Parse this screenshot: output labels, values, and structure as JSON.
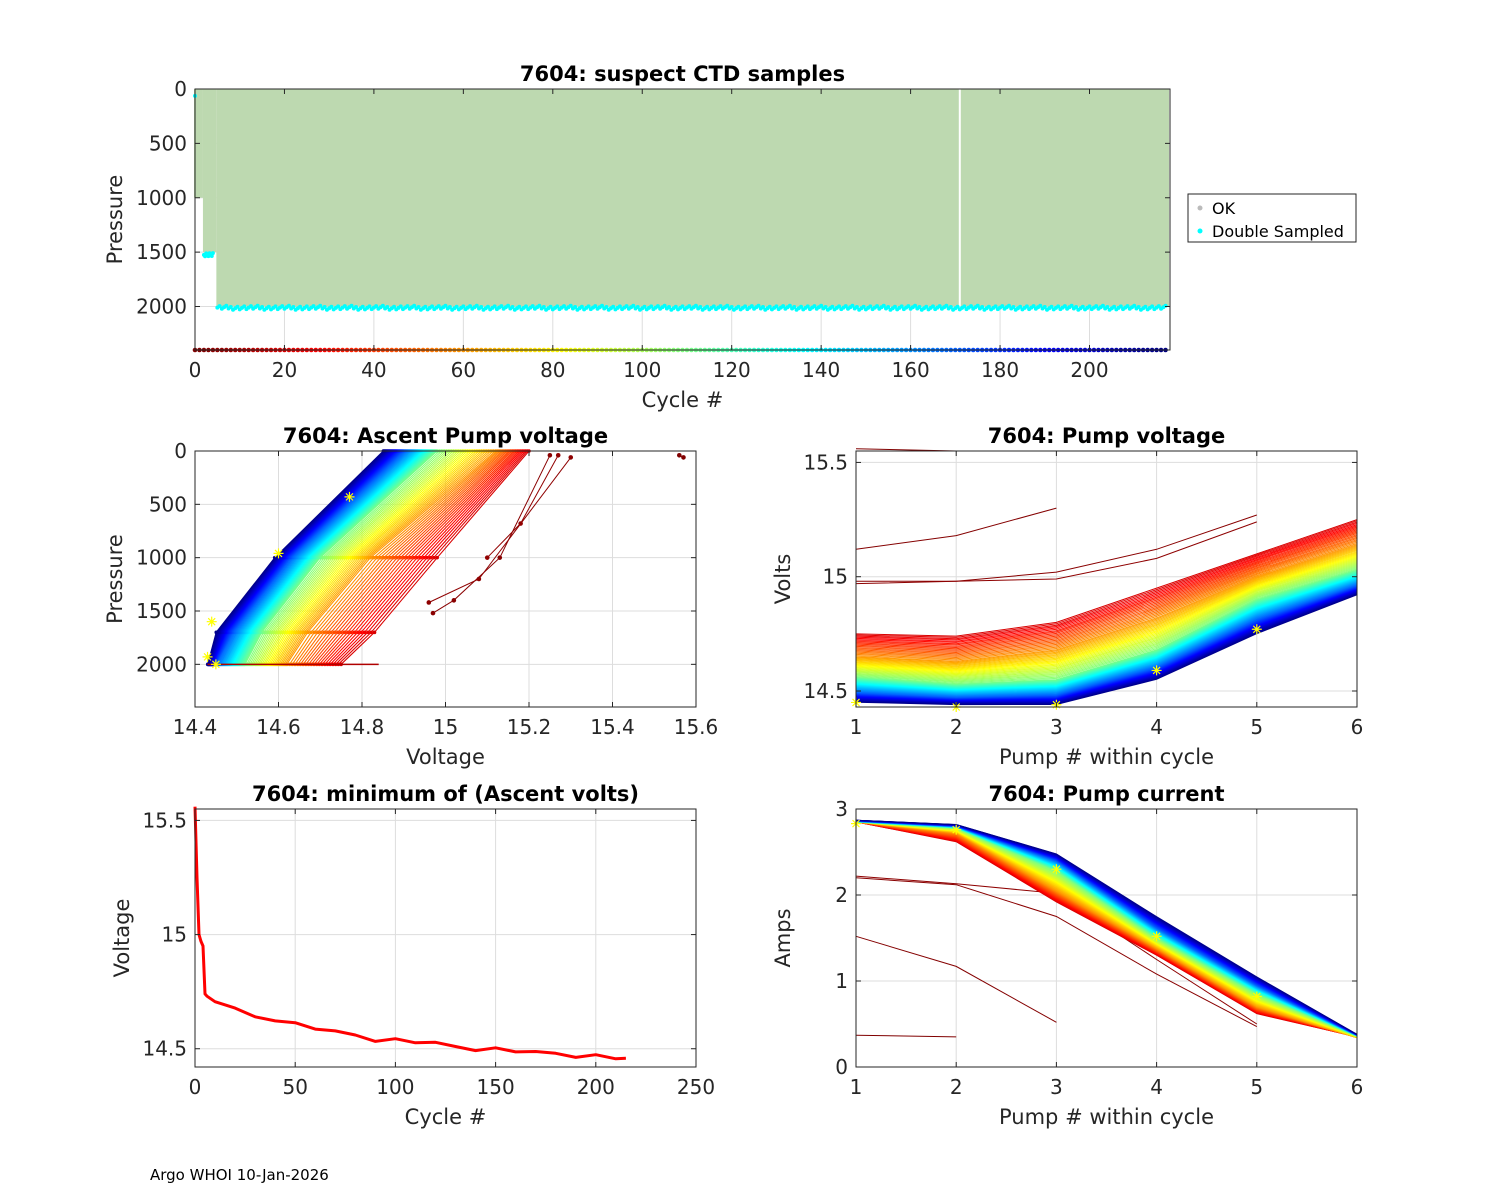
{
  "footer": "Argo WHOI 10-Jan-2026",
  "colors": {
    "ok": "#bdd9b0",
    "double_sampled": "#00ffff",
    "grid": "#dddddd",
    "axis": "#262626",
    "min_line": "#ff0000",
    "marker": "#ffff00"
  },
  "chart_data": [
    {
      "id": "suspect",
      "type": "scatter",
      "title": "7604: suspect CTD samples",
      "xlabel": "Cycle #",
      "ylabel": "Pressure",
      "xlim": [
        0,
        218
      ],
      "ylim": [
        0,
        2400
      ],
      "y_reversed": true,
      "xticks": [
        0,
        20,
        40,
        60,
        80,
        100,
        120,
        140,
        160,
        180,
        200
      ],
      "yticks": [
        0,
        500,
        1000,
        1500,
        2000
      ],
      "legend": {
        "position": "outside-right",
        "entries": [
          {
            "label": "OK",
            "color": "#bbbbbb"
          },
          {
            "label": "Double Sampled",
            "color": "#00ffff"
          }
        ]
      },
      "ok_profile_max_pressure": [
        {
          "cycles": [
            0,
            1
          ],
          "p": 1000
        },
        {
          "cycles": [
            2,
            4
          ],
          "p": 1500
        },
        {
          "cycles": [
            5,
            217
          ],
          "p": 2000
        }
      ],
      "gap_cycle": 171,
      "double_sampled_depths": [
        {
          "cycles": [
            0,
            0
          ],
          "p": 80
        },
        {
          "cycles": [
            2,
            4
          ],
          "p": 1520
        },
        {
          "cycles": [
            5,
            217
          ],
          "p": 2010
        }
      ],
      "cycle_colorbar_pressure": 2400
    },
    {
      "id": "ascent_voltage",
      "type": "line",
      "title": "7604: Ascent Pump voltage",
      "xlabel": "Voltage",
      "ylabel": "Pressure",
      "xlim": [
        14.4,
        15.6
      ],
      "ylim": [
        0,
        2400
      ],
      "y_reversed": true,
      "xticks": [
        14.4,
        14.6,
        14.8,
        15,
        15.2,
        15.4,
        15.6
      ],
      "yticks": [
        0,
        500,
        1000,
        1500,
        2000
      ],
      "series_by_cycle": [
        {
          "cycle": 1,
          "points": [
            [
              15.56,
              40
            ],
            [
              15.57,
              60
            ]
          ]
        },
        {
          "cycle": 3,
          "points": [
            [
              14.97,
              1520
            ],
            [
              15.02,
              1400
            ],
            [
              15.13,
              1000
            ],
            [
              15.25,
              40
            ]
          ]
        },
        {
          "cycle": 4,
          "points": [
            [
              14.96,
              1420
            ],
            [
              15.08,
              1200
            ],
            [
              15.3,
              60
            ]
          ]
        },
        {
          "cycle": 5,
          "points": [
            [
              15.1,
              1000
            ],
            [
              15.18,
              680
            ],
            [
              15.27,
              40
            ]
          ]
        },
        {
          "cycle": 20,
          "points": [
            [
              14.75,
              2000
            ],
            [
              14.83,
              1700
            ],
            [
              14.98,
              1000
            ],
            [
              15.2,
              0
            ]
          ]
        },
        {
          "cycle": 60,
          "points": [
            [
              14.62,
              2000
            ],
            [
              14.67,
              1700
            ],
            [
              14.82,
              1000
            ],
            [
              15.12,
              0
            ]
          ]
        },
        {
          "cycle": 110,
          "points": [
            [
              14.52,
              2000
            ],
            [
              14.56,
              1700
            ],
            [
              14.7,
              1000
            ],
            [
              14.98,
              0
            ]
          ]
        },
        {
          "cycle": 170,
          "points": [
            [
              14.45,
              2000
            ],
            [
              14.49,
              1700
            ],
            [
              14.63,
              1000
            ],
            [
              14.9,
              0
            ]
          ]
        },
        {
          "cycle": 215,
          "points": [
            [
              14.43,
              2000
            ],
            [
              14.45,
              1700
            ],
            [
              14.59,
              1000
            ],
            [
              14.85,
              0
            ]
          ]
        }
      ],
      "minimum_markers": [
        [
          14.77,
          430
        ],
        [
          14.6,
          960
        ],
        [
          14.44,
          1600
        ],
        [
          14.43,
          1930
        ],
        [
          14.45,
          2000
        ]
      ]
    },
    {
      "id": "pump_voltage",
      "type": "line",
      "title": "7604: Pump voltage",
      "xlabel": "Pump # within cycle",
      "ylabel": "Volts",
      "xlim": [
        1,
        6
      ],
      "ylim": [
        14.43,
        15.55
      ],
      "xticks": [
        1,
        2,
        3,
        4,
        5,
        6
      ],
      "ytick_values": [
        14.5,
        15,
        15.5
      ],
      "ytick_labels": [
        "14.5",
        "15",
        "15.5"
      ],
      "series_by_cycle": [
        {
          "cycle": 1,
          "values": [
            15.56,
            15.55
          ]
        },
        {
          "cycle": 2,
          "values": [
            15.12,
            15.18,
            15.3
          ]
        },
        {
          "cycle": 3,
          "values": [
            14.98,
            14.98,
            15.02,
            15.12,
            15.27
          ]
        },
        {
          "cycle": 4,
          "values": [
            14.97,
            14.98,
            14.99,
            15.08,
            15.24
          ]
        },
        {
          "cycle": 20,
          "values": [
            14.75,
            14.74,
            14.8,
            14.95,
            15.1,
            15.25
          ]
        },
        {
          "cycle": 60,
          "values": [
            14.65,
            14.63,
            14.68,
            14.82,
            15.0,
            15.14
          ]
        },
        {
          "cycle": 110,
          "values": [
            14.56,
            14.53,
            14.55,
            14.68,
            14.9,
            15.03
          ]
        },
        {
          "cycle": 170,
          "values": [
            14.49,
            14.47,
            14.48,
            14.6,
            14.81,
            14.96
          ]
        },
        {
          "cycle": 215,
          "values": [
            14.45,
            14.44,
            14.44,
            14.55,
            14.75,
            14.92
          ]
        }
      ],
      "minimum_markers": [
        [
          1,
          14.45
        ],
        [
          2,
          14.43
        ],
        [
          3,
          14.44
        ],
        [
          4,
          14.59
        ],
        [
          5,
          14.77
        ]
      ]
    },
    {
      "id": "min_voltage",
      "type": "line",
      "title": "7604: minimum of (Ascent volts)",
      "xlabel": "Cycle #",
      "ylabel": "Voltage",
      "xlim": [
        0,
        250
      ],
      "ylim": [
        14.42,
        15.55
      ],
      "xticks": [
        0,
        50,
        100,
        150,
        200,
        250
      ],
      "ytick_values": [
        14.5,
        15,
        15.5
      ],
      "ytick_labels": [
        "14.5",
        "15",
        "15.5"
      ],
      "x": [
        0,
        1,
        2,
        3,
        4,
        5,
        6,
        10,
        20,
        30,
        40,
        50,
        60,
        70,
        80,
        90,
        100,
        110,
        120,
        130,
        140,
        150,
        160,
        170,
        180,
        190,
        200,
        210,
        215
      ],
      "y": [
        15.56,
        15.25,
        15.0,
        14.97,
        14.95,
        14.74,
        14.73,
        14.71,
        14.67,
        14.64,
        14.63,
        14.61,
        14.59,
        14.57,
        14.56,
        14.54,
        14.54,
        14.53,
        14.52,
        14.51,
        14.5,
        14.5,
        14.49,
        14.48,
        14.48,
        14.47,
        14.47,
        14.46,
        14.45
      ]
    },
    {
      "id": "pump_current",
      "type": "line",
      "title": "7604: Pump current",
      "xlabel": "Pump # within cycle",
      "ylabel": "Amps",
      "xlim": [
        1,
        6
      ],
      "ylim": [
        0,
        3
      ],
      "xticks": [
        1,
        2,
        3,
        4,
        5,
        6
      ],
      "yticks": [
        0,
        1,
        2,
        3
      ],
      "series_by_cycle": [
        {
          "cycle": 1,
          "values": [
            0.37,
            0.35
          ]
        },
        {
          "cycle": 2,
          "values": [
            1.52,
            1.17,
            0.52
          ]
        },
        {
          "cycle": 3,
          "values": [
            2.2,
            2.12,
            1.75,
            1.08,
            0.47
          ]
        },
        {
          "cycle": 4,
          "values": [
            2.22,
            2.13,
            2.02,
            1.25,
            0.5
          ]
        },
        {
          "cycle": 20,
          "values": [
            2.85,
            2.62,
            1.92,
            1.3,
            0.62,
            0.35
          ]
        },
        {
          "cycle": 60,
          "values": [
            2.85,
            2.72,
            2.05,
            1.38,
            0.7,
            0.34
          ]
        },
        {
          "cycle": 110,
          "values": [
            2.85,
            2.78,
            2.28,
            1.5,
            0.85,
            0.36
          ]
        },
        {
          "cycle": 170,
          "values": [
            2.86,
            2.8,
            2.4,
            1.62,
            0.95,
            0.37
          ]
        },
        {
          "cycle": 215,
          "values": [
            2.87,
            2.82,
            2.48,
            1.75,
            1.05,
            0.38
          ]
        }
      ],
      "minimum_markers": [
        [
          1,
          2.83
        ],
        [
          2,
          2.76
        ],
        [
          3,
          2.3
        ],
        [
          4,
          1.52
        ],
        [
          5,
          0.82
        ]
      ]
    }
  ]
}
